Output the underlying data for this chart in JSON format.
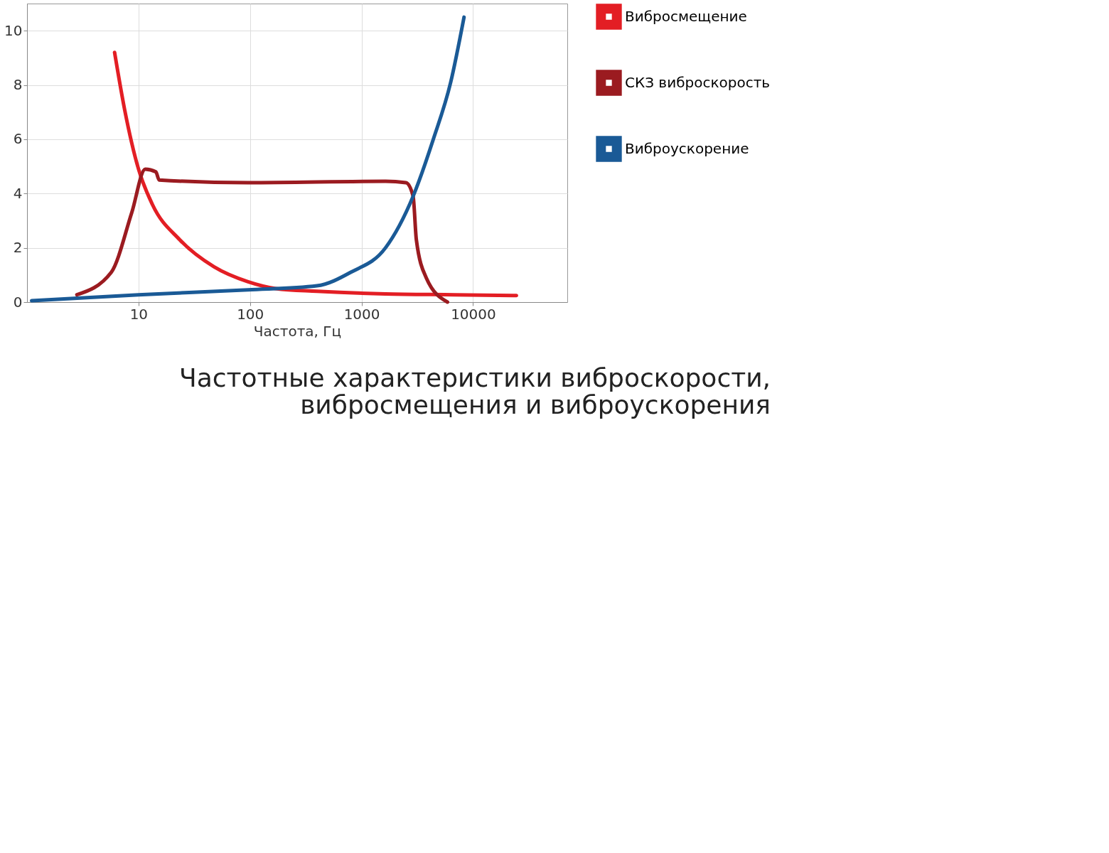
{
  "chart_data": {
    "type": "line",
    "title": "Частотные характеристики виброскорости,\nвибросмещения и виброускорения",
    "xlabel": "Частота, Гц",
    "log": "x",
    "xlim": [
      1,
      70000
    ],
    "xticks": [
      10,
      100,
      1000,
      10000
    ],
    "ylim": [
      0,
      11
    ],
    "yticks": [
      0,
      2,
      4,
      6,
      8,
      10
    ],
    "grid": true,
    "legend": "right",
    "marker": "none",
    "line_style": "solid",
    "series": [
      {
        "name": "Вибросмещение",
        "color": "#e31e24",
        "x": [
          6.1,
          7.5,
          10,
          13.3,
          23.4,
          47.6,
          96,
          170,
          398,
          1640,
          6800,
          24500
        ],
        "values": [
          9.2,
          7.1,
          4.9,
          3.6,
          2.3,
          1.3,
          0.75,
          0.5,
          0.4,
          0.3,
          0.27,
          0.24
        ]
      },
      {
        "name": "СКЗ виброскорость",
        "color": "#9b1b20",
        "x": [
          2.8,
          5.7,
          8.7,
          11.5,
          14.3,
          15.3,
          96,
          1640,
          2500,
          2900,
          3100,
          3800,
          5900
        ],
        "values": [
          0.27,
          1.1,
          3.3,
          4.9,
          4.8,
          4.5,
          4.4,
          4.45,
          4.4,
          3.9,
          2.3,
          0.9,
          0
        ]
      },
      {
        "name": "Виброускорение",
        "color": "#1a5a96",
        "x": [
          1.1,
          10,
          96,
          398,
          800,
          1640,
          2900,
          4400,
          6300,
          8300
        ],
        "values": [
          0.05,
          0.27,
          0.45,
          0.6,
          1.1,
          2.0,
          3.9,
          6.0,
          8.1,
          10.5
        ]
      }
    ]
  }
}
